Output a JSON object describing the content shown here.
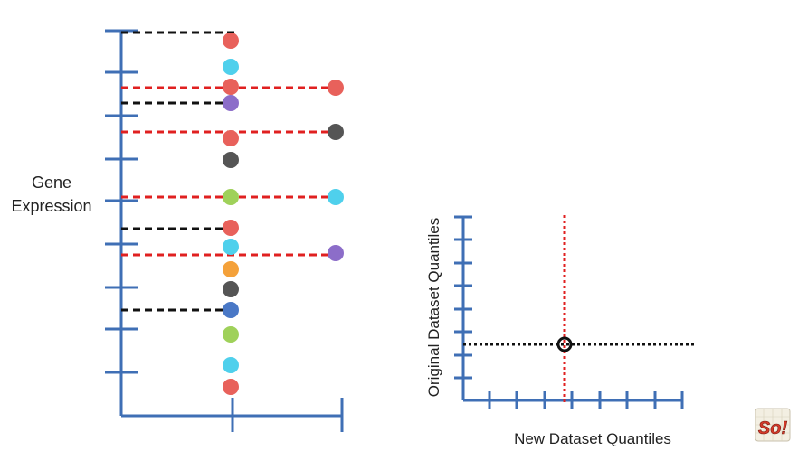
{
  "left_panel": {
    "y_label_line1": "Gene",
    "y_label_line2": "Expression"
  },
  "right_panel": {
    "y_label": "Original Dataset Quantiles",
    "x_label": "New Dataset Quantiles"
  },
  "logo_text": "So!",
  "colors": {
    "axis": "#3f6fb5",
    "red_dash": "#e02020",
    "black_dash": "#111111",
    "red": "#e8615b",
    "cyan": "#4fd0ec",
    "purple": "#8c6dc9",
    "gray": "#555555",
    "green": "#9fd15a",
    "orange": "#f4a13a",
    "blue": "#4a78c6"
  },
  "left_dots_column1": [
    "red",
    "cyan",
    "red",
    "purple",
    "red",
    "gray",
    "green",
    "red",
    "cyan",
    "orange",
    "gray",
    "blue",
    "green",
    "cyan",
    "red"
  ],
  "left_dots_column2": [
    "red",
    "gray",
    "cyan",
    "purple"
  ]
}
